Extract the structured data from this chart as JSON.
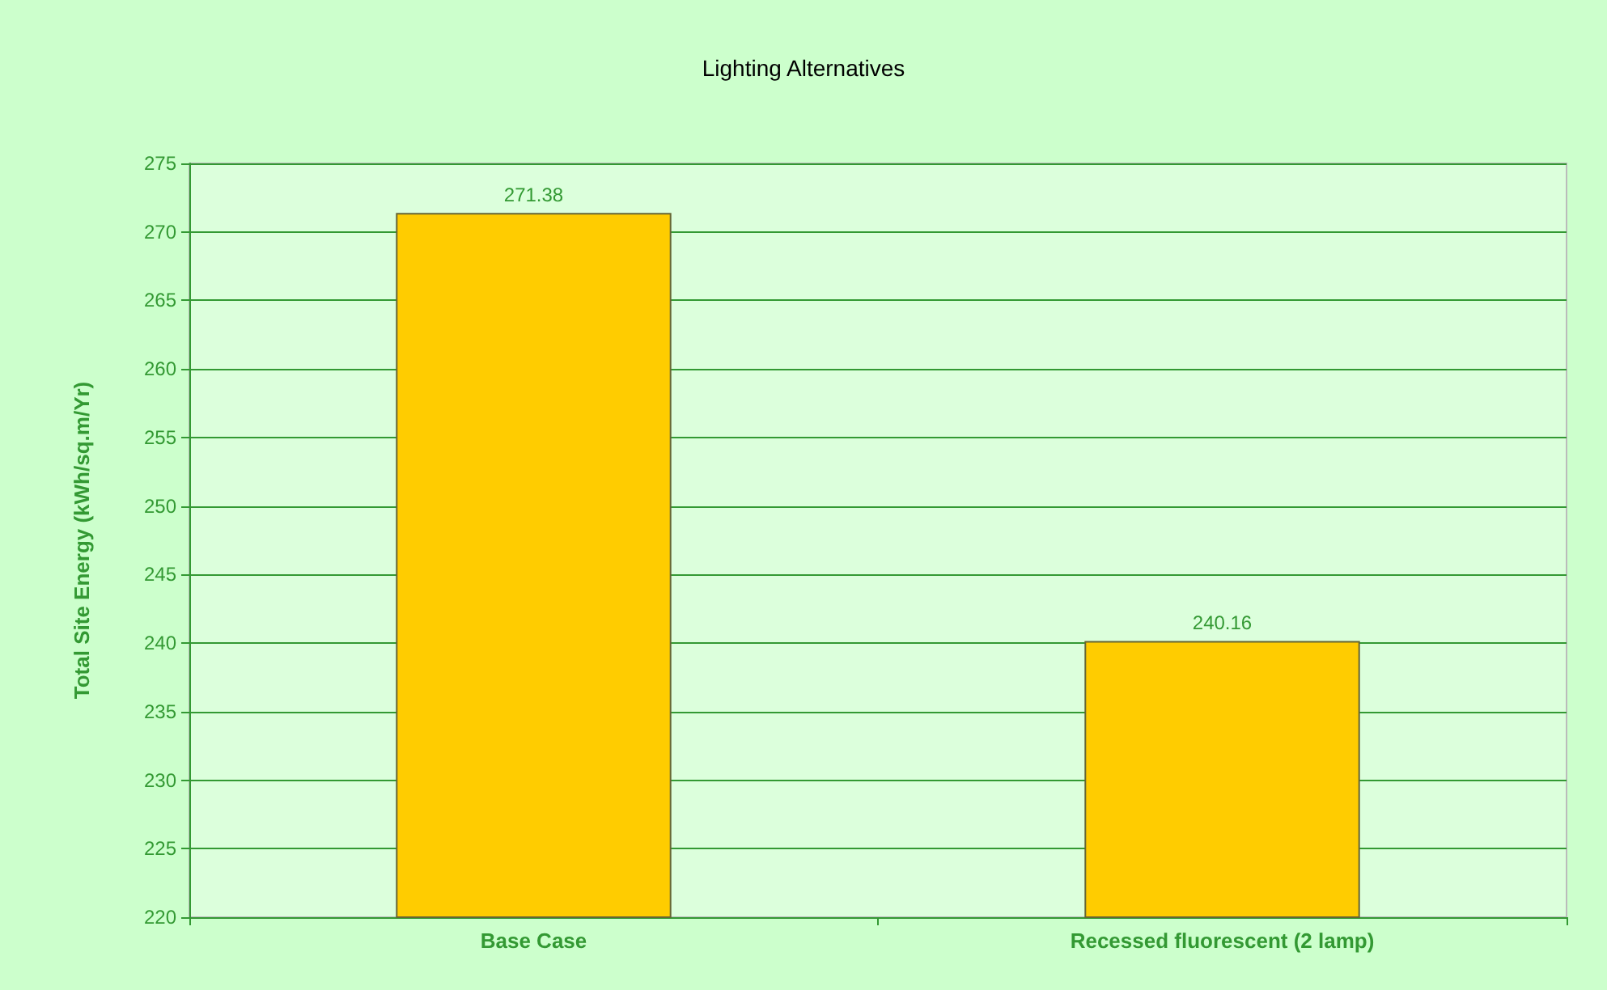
{
  "chart_data": {
    "type": "bar",
    "title": "Lighting Alternatives",
    "ylabel": "Total Site Energy (kWh/sq.m/Yr)",
    "categories": [
      "Base Case",
      "Recessed fluorescent (2 lamp)"
    ],
    "values": [
      271.38,
      240.16
    ],
    "color": "#ffcc00",
    "ylim": [
      220,
      275
    ],
    "yticks": [
      220,
      225,
      230,
      235,
      240,
      245,
      250,
      255,
      260,
      265,
      270,
      275
    ],
    "grid": "y",
    "data_labels": true
  }
}
